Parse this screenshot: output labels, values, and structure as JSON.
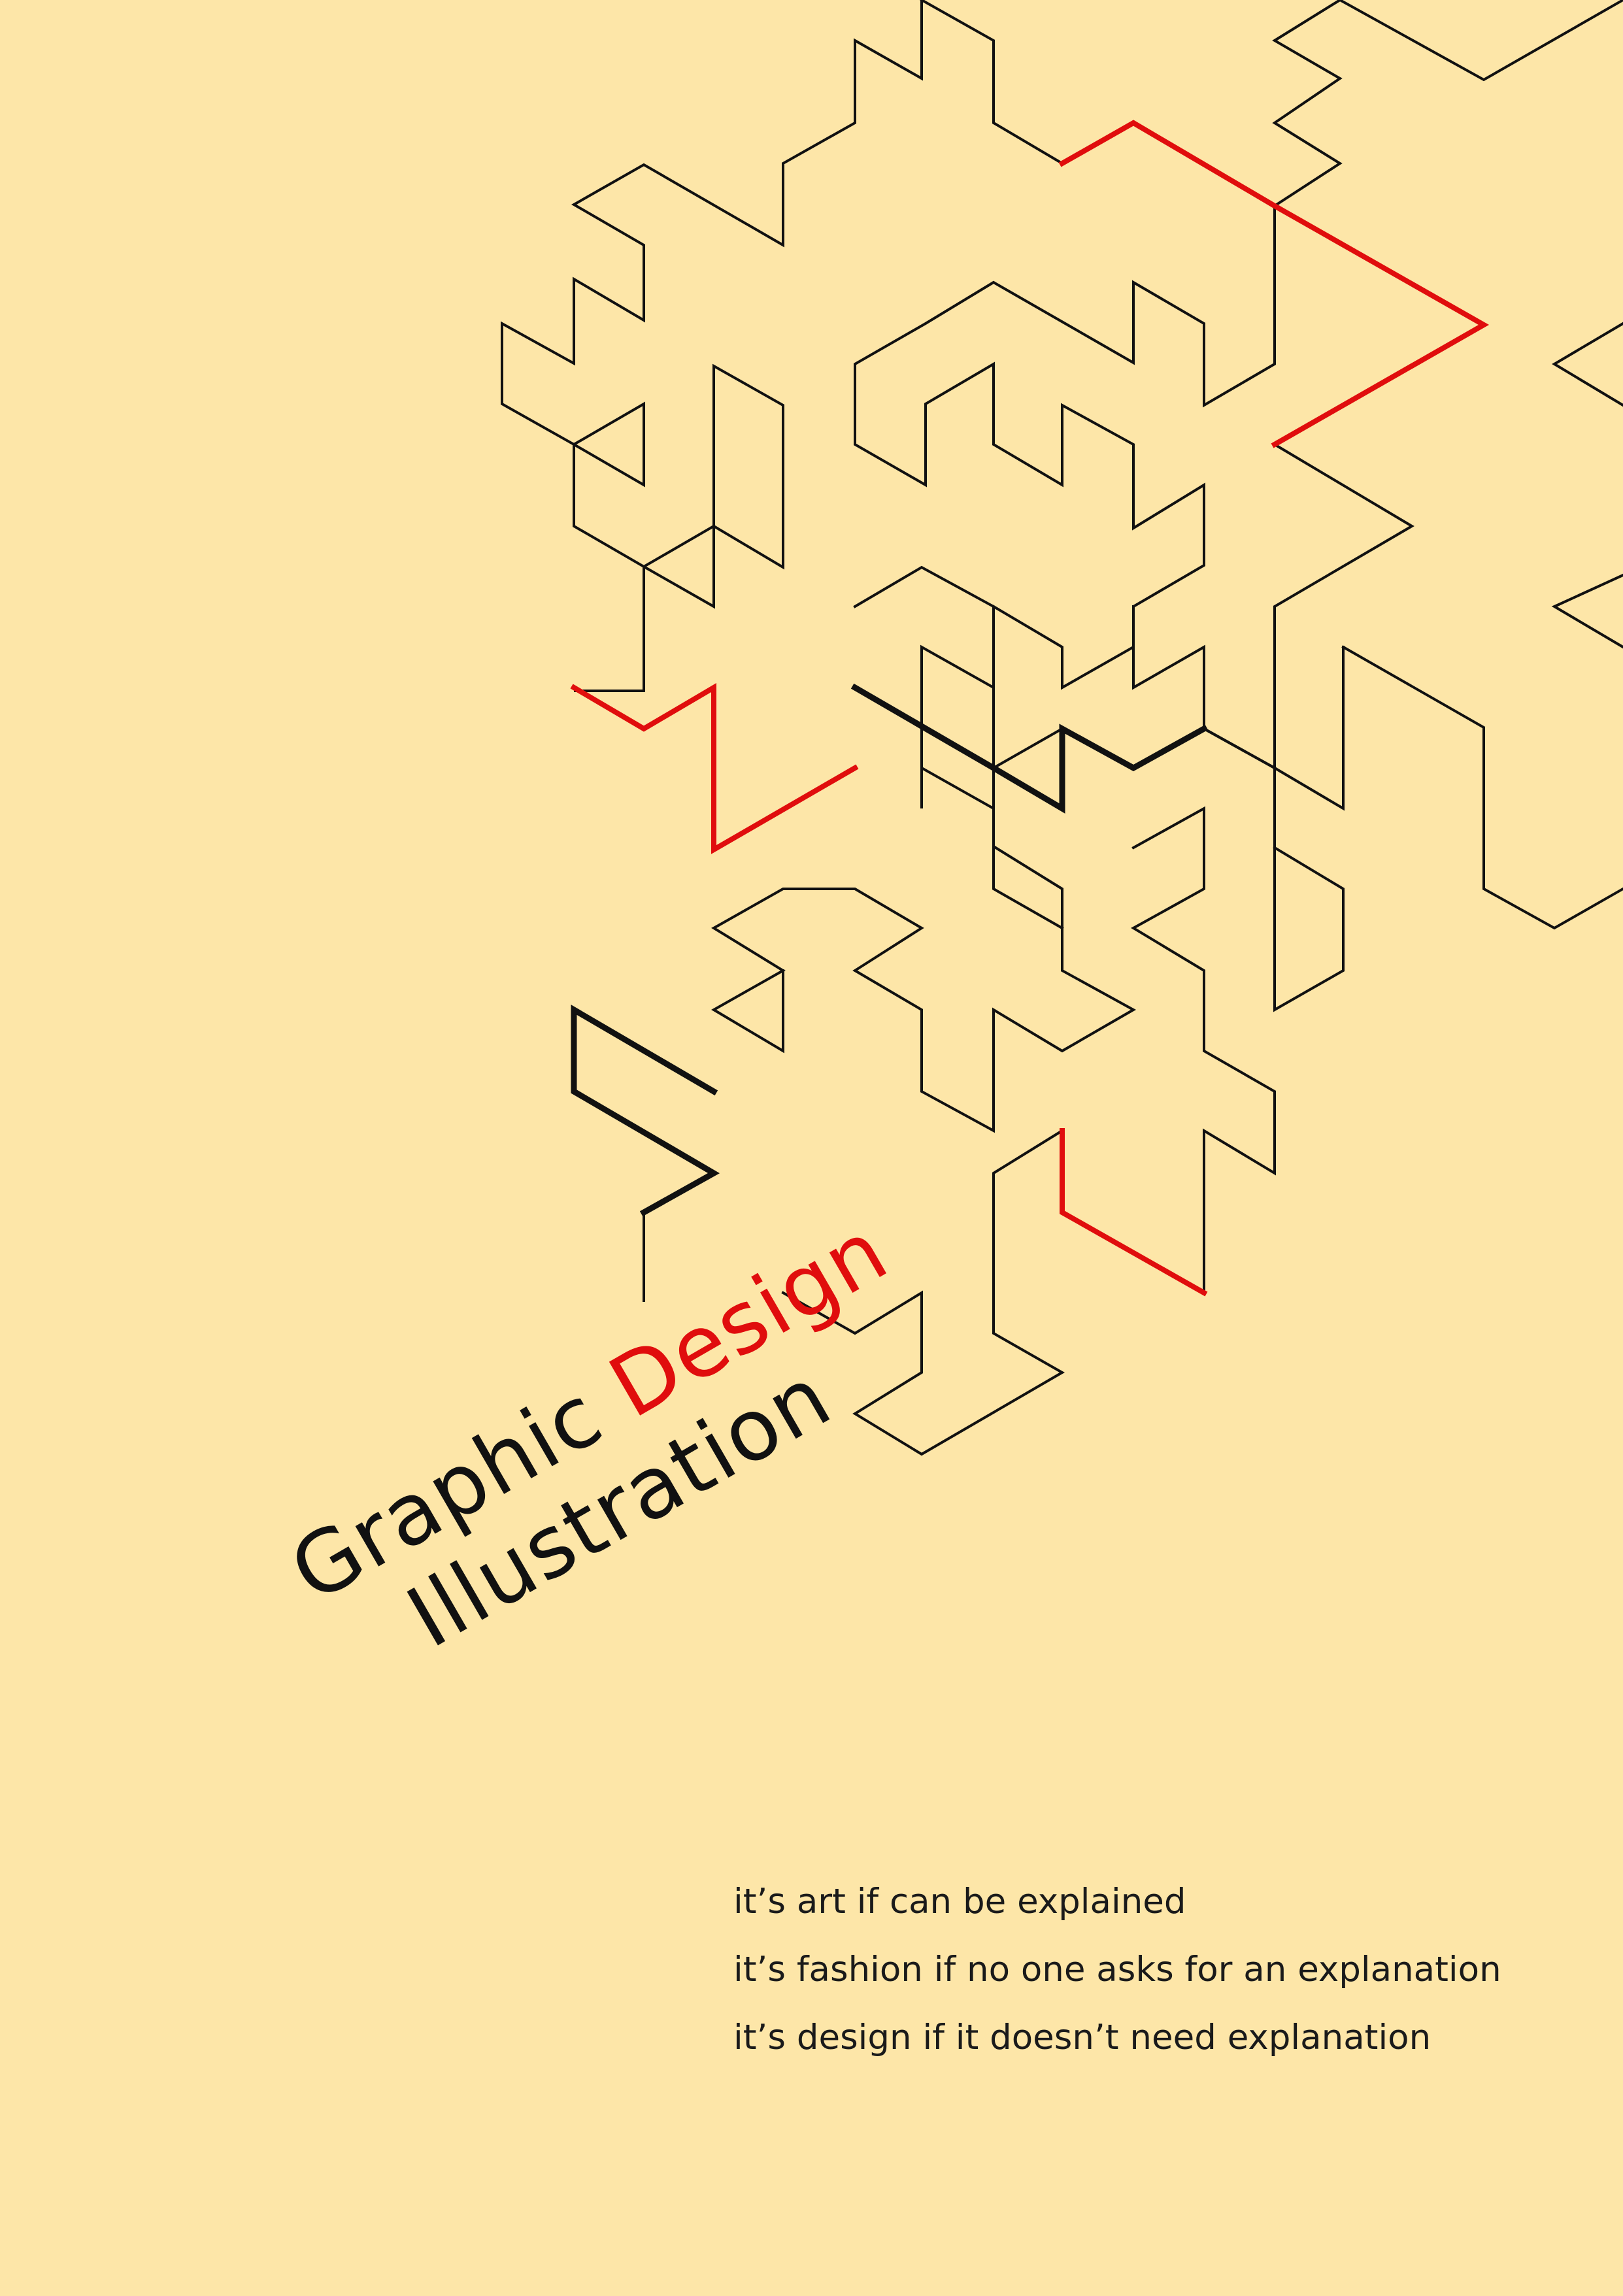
{
  "poster": {
    "background": "#fde6a8",
    "accent_red": "#e00d0d",
    "line_black": "#111111",
    "title": {
      "word1": "Graphic",
      "word2": "Design",
      "word3": "Illustration"
    },
    "quotes": [
      "it’s art if can be explained",
      "it’s fashion if no one asks for an explanation",
      "it’s design if it doesn’t need explanation"
    ]
  }
}
